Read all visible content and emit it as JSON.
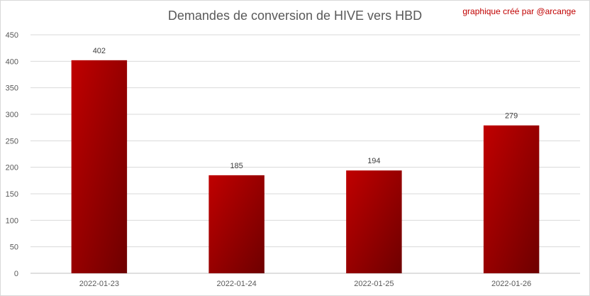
{
  "credit": "graphique créé par @arcange",
  "chart_data": {
    "type": "bar",
    "title": "Demandes de conversion de HIVE vers HBD",
    "categories": [
      "2022-01-23",
      "2022-01-24",
      "2022-01-25",
      "2022-01-26"
    ],
    "values": [
      402,
      185,
      194,
      279
    ],
    "data_labels": [
      "402",
      "185",
      "194",
      "279"
    ],
    "ylim": [
      0,
      450
    ],
    "yticks": [
      0,
      50,
      100,
      150,
      200,
      250,
      300,
      350,
      400,
      450
    ],
    "grid": true,
    "legend": "none",
    "bar_color": "#c00000",
    "bar_color_dark": "#6e0000"
  }
}
